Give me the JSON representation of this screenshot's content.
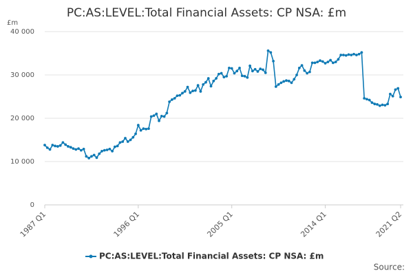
{
  "chart_data": {
    "type": "line",
    "title": "PC:AS:LEVEL:Total Financial Assets: CP NSA: £m",
    "y_label": "£m",
    "source": "Source:",
    "categories": [
      "1987 Q1",
      null,
      null,
      null,
      null,
      null,
      null,
      null,
      null,
      null,
      null,
      null,
      null,
      null,
      null,
      null,
      null,
      null,
      null,
      null,
      null,
      null,
      null,
      null,
      null,
      null,
      null,
      null,
      null,
      null,
      null,
      null,
      null,
      null,
      null,
      null,
      "1996 Q1",
      null,
      null,
      null,
      null,
      null,
      null,
      null,
      null,
      null,
      null,
      null,
      null,
      null,
      null,
      null,
      null,
      null,
      null,
      null,
      null,
      null,
      null,
      null,
      null,
      null,
      null,
      null,
      null,
      null,
      null,
      null,
      null,
      null,
      null,
      null,
      "2005 Q1",
      null,
      null,
      null,
      null,
      null,
      null,
      null,
      null,
      null,
      null,
      null,
      null,
      null,
      null,
      null,
      null,
      null,
      null,
      null,
      null,
      null,
      null,
      null,
      null,
      null,
      null,
      null,
      null,
      null,
      null,
      null,
      null,
      null,
      null,
      null,
      "2014 Q1",
      null,
      null,
      null,
      null,
      null,
      null,
      null,
      null,
      null,
      null,
      null,
      null,
      null,
      null,
      null,
      null,
      null,
      null,
      null,
      null,
      null,
      null,
      null,
      null,
      null,
      null,
      null,
      null,
      "2021 Q2"
    ],
    "series": [
      {
        "name": "PC:AS:LEVEL:Total Financial Assets: CP NSA: £m",
        "color": "#0f7ab5",
        "values": [
          13800,
          13200,
          12800,
          13800,
          13600,
          13500,
          13700,
          14400,
          13900,
          13500,
          13300,
          13000,
          12800,
          13000,
          12600,
          12900,
          11200,
          10800,
          11200,
          11500,
          10900,
          11800,
          12400,
          12600,
          12700,
          12900,
          12400,
          13400,
          13600,
          14400,
          14600,
          15400,
          14600,
          15000,
          15600,
          16400,
          18400,
          17200,
          17600,
          17500,
          17600,
          20400,
          20600,
          21000,
          19400,
          20500,
          20400,
          21200,
          23800,
          24300,
          24600,
          25200,
          25300,
          25800,
          26200,
          27200,
          25900,
          26300,
          26400,
          27600,
          26200,
          27800,
          28300,
          29200,
          27400,
          28600,
          29200,
          30200,
          30400,
          29500,
          29700,
          31600,
          31500,
          30400,
          30900,
          31600,
          29800,
          29700,
          29400,
          32100,
          30900,
          31300,
          30800,
          31400,
          31200,
          30500,
          35600,
          35200,
          33200,
          27300,
          27800,
          28200,
          28500,
          28700,
          28600,
          28200,
          29000,
          30000,
          31600,
          32200,
          31000,
          30400,
          30700,
          32800,
          32800,
          33000,
          33300,
          33100,
          32700,
          33000,
          33400,
          32800,
          33000,
          33600,
          34600,
          34600,
          34500,
          34700,
          34600,
          34800,
          34600,
          34800,
          35200,
          24600,
          24400,
          24200,
          23600,
          23300,
          23200,
          22900,
          23100,
          23000,
          23300,
          25600,
          25100,
          26600,
          26900,
          24900
        ]
      }
    ],
    "ylim": [
      0,
      40000
    ],
    "yticks": [
      0,
      {
        "value": 10000,
        "label": "10 000"
      },
      {
        "value": 20000,
        "label": "20 000"
      },
      {
        "value": 30000,
        "label": "30 000"
      },
      {
        "value": 40000,
        "label": "40 000"
      }
    ],
    "grid": true,
    "legend": "bottom"
  }
}
